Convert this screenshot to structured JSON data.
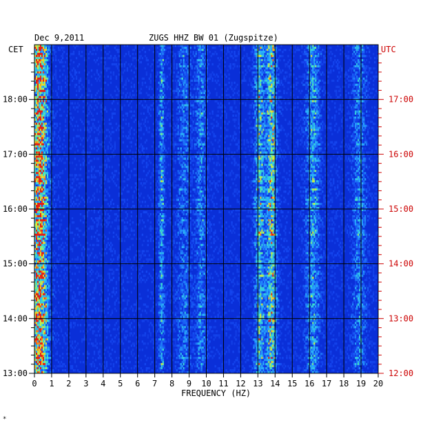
{
  "chart_data": {
    "type": "heatmap",
    "date": "Dec 9,2011",
    "title": "ZUGS HHZ BW 01 (Zugspitze)",
    "left_timezone": "CET",
    "right_timezone": "UTC",
    "xlabel": "FREQUENCY (HZ)",
    "x_ticks": [
      "0",
      "1",
      "2",
      "3",
      "4",
      "5",
      "6",
      "7",
      "8",
      "9",
      "10",
      "11",
      "12",
      "13",
      "14",
      "15",
      "16",
      "17",
      "18",
      "19",
      "20"
    ],
    "xlim": [
      0,
      20
    ],
    "left_ticks": [
      {
        "label": "13:00",
        "hour": 13
      },
      {
        "label": "14:00",
        "hour": 14
      },
      {
        "label": "15:00",
        "hour": 15
      },
      {
        "label": "16:00",
        "hour": 16
      },
      {
        "label": "17:00",
        "hour": 17
      },
      {
        "label": "18:00",
        "hour": 18
      }
    ],
    "right_ticks": [
      {
        "label": "12:00",
        "hour": 13
      },
      {
        "label": "13:00",
        "hour": 14
      },
      {
        "label": "14:00",
        "hour": 15
      },
      {
        "label": "15:00",
        "hour": 16
      },
      {
        "label": "16:00",
        "hour": 17
      },
      {
        "label": "17:00",
        "hour": 18
      }
    ],
    "ylim_cet_hours": [
      13,
      19
    ],
    "background_color": "#0a2fd8",
    "left_label_color": "#000000",
    "right_label_color": "#cc0000",
    "energy_bands_hz": [
      {
        "center": 0.3,
        "width": 0.5,
        "strength": 1.0
      },
      {
        "center": 7.4,
        "width": 0.15,
        "strength": 0.45
      },
      {
        "center": 13.1,
        "width": 0.3,
        "strength": 0.55
      },
      {
        "center": 13.8,
        "width": 0.3,
        "strength": 0.7
      },
      {
        "center": 9.7,
        "width": 0.3,
        "strength": 0.35
      },
      {
        "center": 16.2,
        "width": 0.4,
        "strength": 0.45
      },
      {
        "center": 18.9,
        "width": 0.4,
        "strength": 0.35
      },
      {
        "center": 8.7,
        "width": 0.4,
        "strength": 0.3
      }
    ]
  },
  "footer_mark": "*"
}
